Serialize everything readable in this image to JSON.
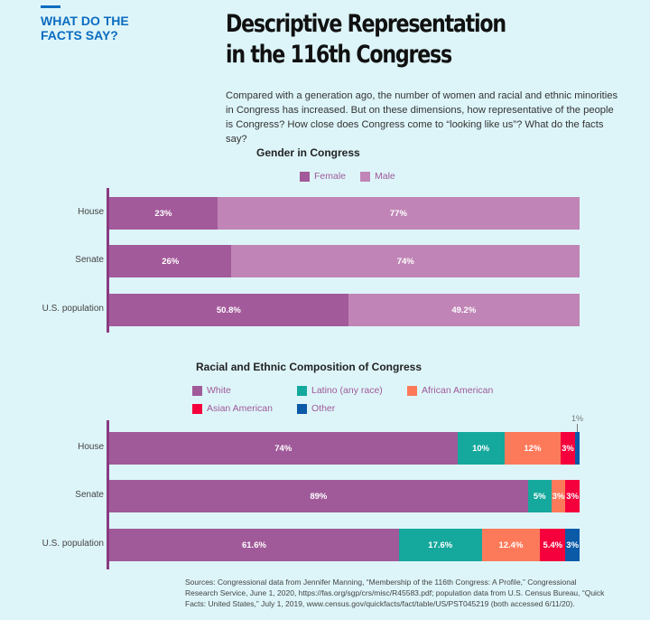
{
  "kicker": "WHAT DO THE FACTS SAY?",
  "title_line1": "Descriptive Representation",
  "title_line2": "in the 116th Congress",
  "intro": "Compared with a generation ago, the number of women and racial and ethnic minorities in Congress has increased. But on these dimensions, how representative of the people is Congress? How close does Congress come to “looking like us”? What do the facts say?",
  "sources": "Sources: Congressional data from Jennifer Manning, “Membership of the 116th Congress: A Profile,” Congressional Research Service, June 1, 2020, https://fas.org/sgp/crs/misc/R45583.pdf; population data from U.S. Census Bureau, “Quick Facts: United States,” July 1, 2019, www.census.gov/quickfacts/fact/table/US/PST045219 (both accessed 6/11/20).",
  "chart_data": [
    {
      "type": "bar",
      "orientation": "horizontal",
      "stacked": true,
      "title": "Gender in Congress",
      "categories": [
        "House",
        "Senate",
        "U.S. population"
      ],
      "legend_placement": "top",
      "series": [
        {
          "name": "Female",
          "color": "#a35a9a",
          "values": [
            23,
            26,
            50.8
          ],
          "labels": [
            "23%",
            "26%",
            "50.8%"
          ]
        },
        {
          "name": "Male",
          "color": "#c085b6",
          "values": [
            77,
            74,
            49.2
          ],
          "labels": [
            "77%",
            "74%",
            "49.2%"
          ]
        }
      ],
      "xlim": [
        0,
        100
      ],
      "grid": false
    },
    {
      "type": "bar",
      "orientation": "horizontal",
      "stacked": true,
      "title": "Racial and Ethnic Composition of Congress",
      "categories": [
        "House",
        "Senate",
        "U.S. population"
      ],
      "legend_placement": "top",
      "series": [
        {
          "name": "White",
          "color": "#a05a99",
          "values": [
            74,
            89,
            61.6
          ],
          "labels": [
            "74%",
            "89%",
            "61.6%"
          ]
        },
        {
          "name": "Latino (any race)",
          "color": "#15a89c",
          "values": [
            10,
            5,
            17.6
          ],
          "labels": [
            "10%",
            "5%",
            "17.6%"
          ]
        },
        {
          "name": "African American",
          "color": "#fc7a5a",
          "values": [
            12,
            3,
            12.4
          ],
          "labels": [
            "12%",
            "3%",
            "12.4%"
          ]
        },
        {
          "name": "Asian American",
          "color": "#f5003c",
          "values": [
            3,
            3,
            5.4
          ],
          "labels": [
            "3%",
            "3%",
            "5.4%"
          ]
        },
        {
          "name": "Other",
          "color": "#0a5aa8",
          "values": [
            1,
            0,
            3
          ],
          "labels": [
            "",
            "",
            "3%"
          ]
        }
      ],
      "annotations": [
        "1%"
      ],
      "xlim": [
        0,
        100
      ],
      "grid": false
    }
  ]
}
